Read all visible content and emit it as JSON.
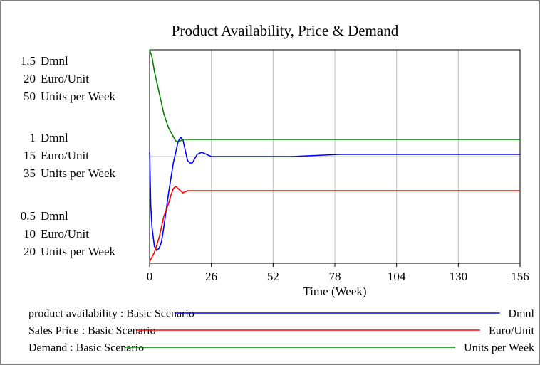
{
  "chart_data": {
    "type": "line",
    "title": "Product Availability, Price & Demand",
    "xlabel": "Time (Week)",
    "xlim": [
      0,
      156
    ],
    "xticks": [
      0,
      26,
      52,
      78,
      104,
      130,
      156
    ],
    "grid": true,
    "series": [
      {
        "name": "product availability : Basic Scenario",
        "unit": "Dmnl",
        "color": "#0000ff",
        "ylim": [
          0.5,
          1.5
        ],
        "yticks": [
          0.5,
          1,
          1.5
        ],
        "x": [
          0,
          0.5,
          1,
          2,
          3,
          4,
          5,
          6,
          8,
          10,
          12,
          13,
          14,
          15,
          16,
          17,
          18,
          20,
          22,
          24,
          26,
          40,
          60,
          80,
          100,
          120,
          140,
          156
        ],
        "values": [
          1.02,
          0.77,
          0.67,
          0.58,
          0.56,
          0.57,
          0.6,
          0.67,
          0.83,
          0.97,
          1.07,
          1.09,
          1.08,
          1.03,
          0.98,
          0.97,
          0.97,
          1.01,
          1.02,
          1.01,
          1.0,
          1.0,
          1.0,
          1.01,
          1.01,
          1.01,
          1.01,
          1.01
        ]
      },
      {
        "name": "Sales Price : Basic Scenario",
        "unit": "Euro/Unit",
        "color": "#ff0000",
        "ylim": [
          10,
          20
        ],
        "yticks": [
          10,
          15,
          20
        ],
        "x": [
          0,
          2,
          4,
          6,
          8,
          9,
          10,
          11,
          12,
          14,
          16,
          20,
          156
        ],
        "values": [
          10.07,
          10.5,
          11.2,
          12.2,
          12.8,
          13.2,
          13.5,
          13.6,
          13.5,
          13.3,
          13.4,
          13.4,
          13.4
        ]
      },
      {
        "name": "Demand : Basic Scenario",
        "unit": "Units per Week",
        "color": "#008000",
        "ylim": [
          20,
          50
        ],
        "yticks": [
          20,
          35,
          50
        ],
        "x": [
          0,
          1,
          2,
          4,
          6,
          8,
          10,
          11,
          12,
          14,
          16,
          156
        ],
        "values": [
          50,
          49,
          47,
          44,
          41,
          39,
          37.8,
          37.2,
          37,
          37.4,
          37.4,
          37.4
        ]
      }
    ]
  }
}
